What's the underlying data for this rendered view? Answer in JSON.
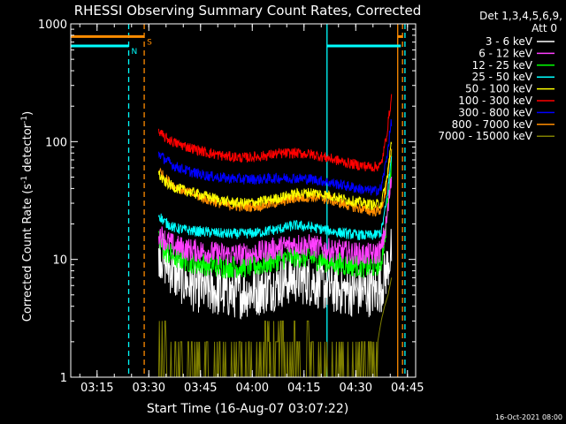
{
  "chart_data": {
    "type": "line",
    "title": "RHESSI Observing Summary Count Rates, Corrected",
    "xlabel": "Start Time (16-Aug-07 03:07:22)",
    "ylabel": "Corrected Count Rate (s⁻¹ detector⁻¹)",
    "ylabel_parts": [
      "Corrected Count Rate (s",
      "-1",
      " detector",
      "-1",
      ")"
    ],
    "yscale": "log",
    "ylim": [
      1,
      1000
    ],
    "xlim_minutes": [
      0,
      100
    ],
    "x_tick_labels": [
      "03:15",
      "03:30",
      "03:45",
      "04:00",
      "04:15",
      "04:30",
      "04:45"
    ],
    "x_tick_minutes": [
      7.63,
      22.63,
      37.63,
      52.63,
      67.63,
      82.63,
      97.63
    ],
    "y_tick_labels": [
      "1",
      "10",
      "100",
      "1000"
    ],
    "y_tick_values": [
      1,
      10,
      100,
      1000
    ],
    "legend_header": [
      "Det 1,3,4,5,6,9,",
      "Att 0"
    ],
    "legend_placement": "right",
    "series": [
      {
        "name": "3 - 6 keV",
        "color": "#ffffff",
        "x": [
          25.5,
          27,
          30,
          35,
          40,
          45,
          50,
          55,
          60,
          65,
          70,
          75,
          80,
          85,
          88,
          90,
          91.5,
          93
        ],
        "values": [
          12,
          10,
          7.5,
          6,
          5.5,
          5.2,
          5.2,
          5.5,
          6.2,
          7,
          6.5,
          5.8,
          5.4,
          5.3,
          5.4,
          5.8,
          8,
          12
        ]
      },
      {
        "name": "6 - 12 keV",
        "color": "#ff3fff",
        "x": [
          25.5,
          27,
          30,
          35,
          40,
          45,
          50,
          55,
          60,
          65,
          70,
          75,
          80,
          85,
          88,
          90,
          91.5,
          93
        ],
        "values": [
          17,
          15,
          13,
          12,
          11.5,
          11,
          11,
          11.5,
          12.5,
          13.5,
          13,
          12,
          11.5,
          11,
          11,
          12,
          20,
          50
        ]
      },
      {
        "name": "12 - 25 keV",
        "color": "#00ff00",
        "x": [
          25.5,
          27,
          30,
          35,
          40,
          45,
          50,
          55,
          60,
          65,
          70,
          75,
          80,
          85,
          88,
          90,
          91.5,
          93
        ],
        "values": [
          14,
          12,
          10.5,
          9.5,
          9,
          8.7,
          8.7,
          9,
          10,
          10.7,
          10.3,
          9.5,
          9,
          8.7,
          8.7,
          9.5,
          20,
          70
        ]
      },
      {
        "name": "25 - 50 keV",
        "color": "#00ffff",
        "x": [
          25.5,
          27,
          30,
          35,
          40,
          45,
          50,
          55,
          60,
          65,
          70,
          75,
          80,
          85,
          88,
          90,
          91.5,
          93
        ],
        "values": [
          24,
          21,
          18.5,
          17.5,
          17,
          16.5,
          16.5,
          17,
          18,
          19.5,
          18.7,
          17.5,
          16.5,
          16,
          16,
          17,
          30,
          75
        ]
      },
      {
        "name": "50 - 100 keV",
        "color": "#ffff00",
        "x": [
          25.5,
          27,
          30,
          35,
          40,
          45,
          50,
          55,
          60,
          65,
          70,
          75,
          80,
          85,
          88,
          90,
          91.5,
          93
        ],
        "values": [
          53,
          46,
          41,
          37,
          34,
          31,
          30,
          31,
          33,
          36,
          37,
          35,
          32,
          30,
          29,
          30,
          45,
          100
        ]
      },
      {
        "name": "100 - 300 keV",
        "color": "#ff0000",
        "x": [
          25.5,
          27,
          30,
          35,
          40,
          45,
          50,
          55,
          60,
          65,
          70,
          75,
          80,
          85,
          88,
          90,
          91.5,
          93
        ],
        "values": [
          120,
          110,
          98,
          88,
          80,
          75,
          73,
          75,
          79,
          80,
          78,
          72,
          66,
          62,
          61,
          63,
          110,
          240
        ]
      },
      {
        "name": "300 - 800 keV",
        "color": "#0000ff",
        "x": [
          25.5,
          27,
          30,
          35,
          40,
          45,
          50,
          55,
          60,
          65,
          70,
          75,
          80,
          85,
          88,
          90,
          91.5,
          93
        ],
        "values": [
          80,
          72,
          62,
          55,
          51,
          49,
          48,
          48,
          49,
          49,
          48,
          45,
          42,
          39,
          38,
          40,
          70,
          150
        ]
      },
      {
        "name": "800 - 7000 keV",
        "color": "#ff8c00",
        "x": [
          25.5,
          27,
          30,
          35,
          40,
          45,
          50,
          55,
          60,
          65,
          70,
          75,
          80,
          85,
          88,
          90,
          91.5,
          93
        ],
        "values": [
          58,
          50,
          42,
          36,
          32,
          29,
          28,
          28.5,
          30.5,
          33,
          34,
          32,
          29,
          26.5,
          25.5,
          26.5,
          40,
          90
        ]
      },
      {
        "name": "7000 - 15000 keV",
        "color": "#808000",
        "x": [
          25.5,
          27,
          29,
          35,
          45,
          55,
          56,
          63,
          70,
          71,
          77,
          83,
          86,
          89,
          90,
          91,
          92,
          93
        ],
        "values": [
          3,
          3,
          1,
          1,
          1,
          1,
          2,
          2,
          2,
          1,
          1,
          1,
          1,
          2,
          3,
          4,
          5,
          7
        ]
      }
    ],
    "flags": {
      "N": {
        "label": "N",
        "color": "#00ffff",
        "level": 650,
        "intervals": [
          [
            0,
            16.8
          ],
          [
            74.3,
            95.7
          ]
        ]
      },
      "S": {
        "label": "S",
        "color": "#ff8c00",
        "level": 780,
        "intervals": [
          [
            0,
            21.3
          ],
          [
            94.8,
            96.2
          ]
        ]
      }
    },
    "vertical_lines": {
      "cyan_dashed_min": [
        16.8
      ],
      "cyan_solid_min": [
        74.3
      ],
      "orange_dashed_min": [
        21.3,
        96.2
      ],
      "orange_solid_min": [
        94.8
      ],
      "cyan_dashed_after_min": [
        96.9
      ]
    }
  },
  "footer_date": "16-Oct-2021 08:00"
}
